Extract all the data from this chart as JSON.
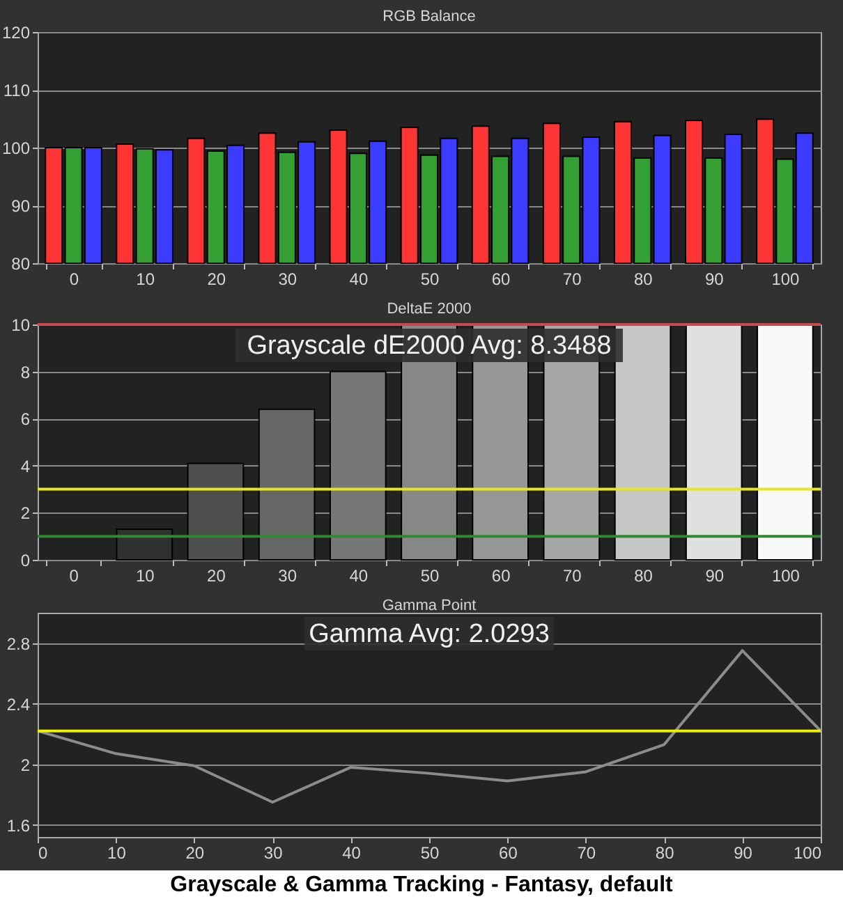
{
  "chart_data": [
    {
      "type": "bar",
      "title": "RGB Balance",
      "categories": [
        "0",
        "10",
        "20",
        "30",
        "40",
        "50",
        "60",
        "70",
        "80",
        "90",
        "100"
      ],
      "series": [
        {
          "color": "#ff3434",
          "values": [
            100,
            100.6,
            101.6,
            102.5,
            103.0,
            103.5,
            103.7,
            104.2,
            104.5,
            104.7,
            104.9
          ]
        },
        {
          "color": "#34a034",
          "values": [
            100,
            99.8,
            99.4,
            99.2,
            99.0,
            98.7,
            98.5,
            98.5,
            98.2,
            98.2,
            98.0
          ]
        },
        {
          "color": "#3c3cff",
          "values": [
            100,
            99.6,
            100.4,
            101.0,
            101.1,
            101.6,
            101.6,
            101.8,
            102.1,
            102.3,
            102.5
          ]
        }
      ],
      "ylim": [
        80,
        120
      ],
      "yticks": [
        80,
        90,
        100,
        110,
        120
      ],
      "grid": "y"
    },
    {
      "type": "bar",
      "title": "DeltaE 2000",
      "categories": [
        "0",
        "10",
        "20",
        "30",
        "40",
        "50",
        "60",
        "70",
        "80",
        "90",
        "100"
      ],
      "values": [
        null,
        1.3,
        4.1,
        6.4,
        8.0,
        10,
        10,
        10,
        10,
        10,
        10
      ],
      "colors": [
        null,
        "#303030",
        "#4e4e4e",
        "#666666",
        "#777777",
        "#878787",
        "#969696",
        "#a6a6a6",
        "#c6c6c6",
        "#e0e0e0",
        "#f8f8f8"
      ],
      "ylim": [
        0,
        10
      ],
      "yticks": [
        0,
        2,
        4,
        6,
        8,
        10
      ],
      "grid": "y",
      "annotations": [
        "Grayscale dE2000 Avg: 8.3488"
      ],
      "ref_lines": [
        {
          "axis": "y",
          "value": 10,
          "color": "#c84a4a"
        },
        {
          "axis": "y",
          "value": 3,
          "color": "#e6e620"
        },
        {
          "axis": "y",
          "value": 1,
          "color": "#2e8a2e"
        }
      ]
    },
    {
      "type": "line",
      "title": "Gamma Point",
      "x": [
        0,
        10,
        20,
        30,
        40,
        50,
        60,
        70,
        80,
        90,
        100
      ],
      "series": [
        {
          "color": "#8c8c8c",
          "values": [
            2.22,
            2.07,
            1.99,
            1.75,
            1.98,
            1.94,
            1.89,
            1.95,
            2.13,
            2.75,
            2.22
          ]
        }
      ],
      "xlim": [
        0,
        100
      ],
      "xticks": [
        0,
        10,
        20,
        30,
        40,
        50,
        60,
        70,
        80,
        90,
        100
      ],
      "ylim": [
        1.52,
        3.0
      ],
      "yticks": [
        1.6,
        2,
        2.4,
        2.8
      ],
      "grid": "y",
      "marker": "none",
      "line_style": "solid",
      "annotations": [
        "Gamma Avg: 2.0293"
      ],
      "ref_lines": [
        {
          "axis": "y",
          "value": 2.22,
          "color": "#f0f000"
        }
      ]
    },
    {
      "type": "other",
      "title": "Grayscale & Gamma Tracking - Fantasy, default"
    }
  ]
}
